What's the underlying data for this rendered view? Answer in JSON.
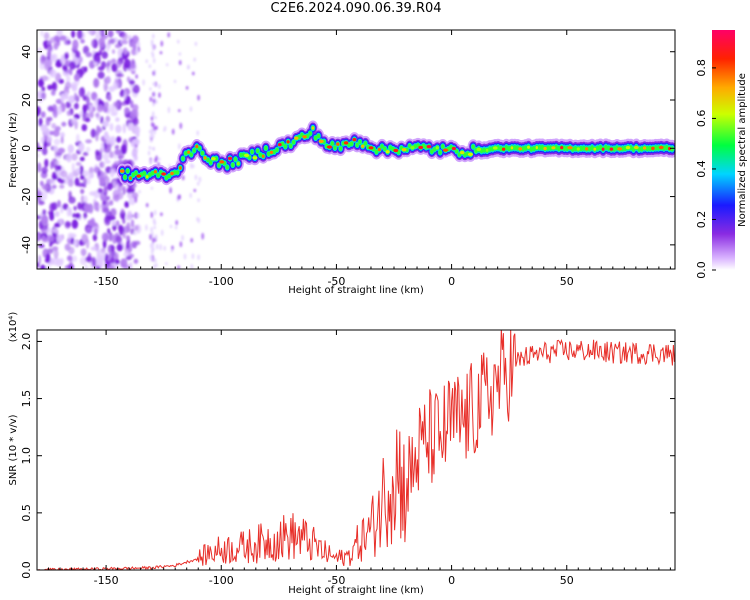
{
  "title": "C2E6.2024.090.06.39.R04",
  "chart_data": [
    {
      "type": "heatmap",
      "xlabel": "Height of straight line (km)",
      "ylabel": "Frequency (Hz)",
      "xlim": [
        -180,
        97
      ],
      "ylim": [
        -50,
        49
      ],
      "xticks": [
        -150,
        -100,
        -50,
        0,
        50
      ],
      "yticks": [
        -40,
        -20,
        0,
        20,
        40
      ],
      "xtick_labels": [
        "-150",
        "-100",
        "-50",
        "0",
        "50"
      ],
      "ytick_labels": [
        "-40",
        "-20",
        "0",
        "20",
        "40"
      ],
      "ridge": {
        "x": [
          -143,
          -130,
          -120,
          -115,
          -110,
          -100,
          -90,
          -80,
          -70,
          -60,
          -55,
          -50,
          -45,
          -40,
          -35,
          -30,
          -25,
          -20,
          -10,
          0,
          10,
          20,
          40,
          60,
          80,
          97
        ],
        "y": [
          -11,
          -11,
          -11,
          -1,
          -1,
          -7,
          -4,
          -1,
          2,
          7,
          2,
          0,
          2,
          3,
          1,
          -1,
          0,
          0,
          0,
          -1,
          -1,
          0,
          0,
          0,
          0,
          0
        ]
      },
      "noise_region_x": [
        -180,
        -140
      ],
      "colorbar": {
        "label": "Normalized spectral amplitude",
        "range": [
          0,
          0.95
        ],
        "ticks": [
          0.0,
          0.2,
          0.4,
          0.6,
          0.8
        ],
        "tick_labels": [
          "0.0",
          "0.2",
          "0.4",
          "0.6",
          "0.8"
        ]
      }
    },
    {
      "type": "line",
      "xlabel": "Height of straight line (km)",
      "ylabel": "SNR (10 * v/v)",
      "y_multiplier": "(x10⁴)",
      "xlim": [
        -180,
        97
      ],
      "ylim": [
        0,
        2.1
      ],
      "xticks": [
        -150,
        -100,
        -50,
        0,
        50
      ],
      "yticks": [
        0.0,
        0.5,
        1.0,
        1.5,
        2.0
      ],
      "xtick_labels": [
        "-150",
        "-100",
        "-50",
        "0",
        "50"
      ],
      "ytick_labels": [
        "0.0",
        "0.5",
        "1.0",
        "1.5",
        "2.0"
      ],
      "color": "#e8302a",
      "series": [
        {
          "x": [
            -180,
            -150,
            -130,
            -120,
            -110,
            -105,
            -100,
            -90,
            -80,
            -70,
            -65,
            -60,
            -55,
            -50,
            -45,
            -40,
            -35,
            -30,
            -25,
            -20,
            -15,
            -10,
            -5,
            0,
            5,
            10,
            15,
            20,
            25,
            30,
            40,
            50,
            60,
            70,
            80,
            90,
            97
          ],
          "values": [
            0.0,
            0.01,
            0.02,
            0.04,
            0.1,
            0.15,
            0.18,
            0.2,
            0.25,
            0.3,
            0.28,
            0.22,
            0.15,
            0.1,
            0.12,
            0.25,
            0.35,
            0.6,
            0.95,
            0.7,
            1.0,
            1.15,
            1.15,
            1.3,
            1.3,
            1.4,
            1.5,
            1.65,
            1.75,
            1.85,
            1.9,
            1.92,
            1.92,
            1.9,
            1.9,
            1.9,
            1.88
          ]
        }
      ]
    }
  ]
}
